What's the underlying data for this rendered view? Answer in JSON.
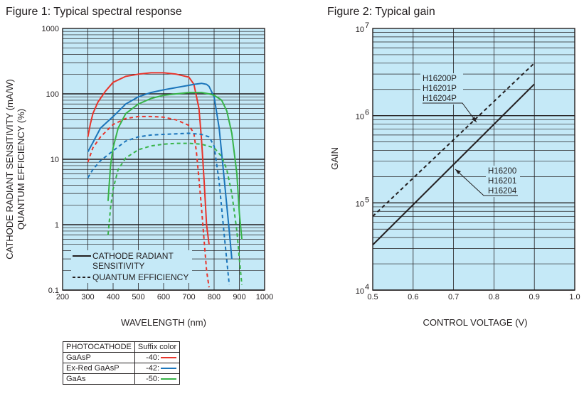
{
  "figure1": {
    "title": "Figure 1: Typical spectral response",
    "chart_data": {
      "type": "line",
      "xlabel": "WAVELENGTH (nm)",
      "ylabel_line1": "CATHODE RADIANT SENSITIVITY (mA/W)",
      "ylabel_line2": "QUANTUM EFFICIENCY (%)",
      "xlim": [
        200,
        1000
      ],
      "ylim": [
        0.1,
        1000
      ],
      "yscale": "log",
      "xticks": [
        200,
        300,
        400,
        500,
        600,
        700,
        800,
        900,
        1000
      ],
      "yticks": [
        0.1,
        1,
        10,
        100,
        1000
      ],
      "ytick_labels": [
        "0.1",
        "1",
        "10",
        "100",
        "1000"
      ],
      "grid": true,
      "legend": {
        "placement": "bottom-left",
        "solid_label_line1": "CATHODE RADIANT",
        "solid_label_line2": "SENSITIVITY",
        "dashed_label": "QUANTUM EFFICIENCY"
      },
      "series": [
        {
          "color": "#e8352c",
          "style": "solid",
          "x": [
            300,
            310,
            320,
            340,
            370,
            400,
            450,
            500,
            550,
            600,
            650,
            700,
            720,
            740,
            750,
            760,
            770,
            780
          ],
          "y": [
            22,
            35,
            50,
            75,
            110,
            150,
            185,
            200,
            210,
            210,
            200,
            180,
            140,
            60,
            20,
            5,
            1,
            0.5
          ]
        },
        {
          "color": "#e8352c",
          "style": "dashed",
          "x": [
            300,
            320,
            350,
            400,
            450,
            500,
            550,
            600,
            650,
            700,
            720,
            730,
            740,
            750,
            760,
            770,
            780
          ],
          "y": [
            9,
            15,
            22,
            34,
            42,
            45,
            45,
            44,
            40,
            33,
            25,
            13,
            5,
            1.8,
            0.6,
            0.2,
            0.11
          ]
        },
        {
          "color": "#1b75bb",
          "style": "solid",
          "x": [
            300,
            320,
            350,
            400,
            450,
            500,
            550,
            600,
            650,
            700,
            720,
            750,
            770,
            780,
            800,
            820,
            840,
            860,
            870
          ],
          "y": [
            13,
            18,
            30,
            45,
            70,
            90,
            105,
            115,
            125,
            135,
            140,
            145,
            140,
            130,
            90,
            30,
            5,
            0.8,
            0.3
          ]
        },
        {
          "color": "#1b75bb",
          "style": "dashed",
          "x": [
            300,
            320,
            350,
            400,
            450,
            500,
            550,
            600,
            650,
            700,
            750,
            780,
            800,
            820,
            840,
            860
          ],
          "y": [
            5.2,
            7,
            9.5,
            13.5,
            19,
            22,
            23.5,
            24,
            24.5,
            25,
            24,
            22,
            16,
            4.5,
            0.7,
            0.12
          ]
        },
        {
          "color": "#38b449",
          "style": "solid",
          "x": [
            380,
            390,
            400,
            420,
            450,
            500,
            550,
            600,
            650,
            700,
            750,
            780,
            800,
            830,
            850,
            870,
            890,
            900,
            910
          ],
          "y": [
            2.3,
            8,
            15,
            30,
            50,
            70,
            85,
            95,
            100,
            105,
            105,
            100,
            95,
            80,
            55,
            25,
            6,
            1.5,
            0.6
          ]
        },
        {
          "color": "#38b449",
          "style": "dashed",
          "x": [
            380,
            390,
            400,
            420,
            450,
            500,
            550,
            600,
            650,
            700,
            750,
            800,
            830,
            850,
            870,
            890,
            900,
            910
          ],
          "y": [
            0.7,
            1.8,
            3.5,
            7,
            10.5,
            14,
            16,
            17,
            17.5,
            17.5,
            17,
            15,
            11,
            7,
            3,
            0.8,
            0.3,
            0.12
          ]
        }
      ]
    }
  },
  "figure2": {
    "title": "Figure 2: Typical gain",
    "chart_data": {
      "type": "line",
      "xlabel": "CONTROL VOLTAGE (V)",
      "ylabel": "GAIN",
      "xlim": [
        0.5,
        1.0
      ],
      "ylim": [
        10000,
        10000000
      ],
      "yscale": "log",
      "xticks": [
        0.5,
        0.6,
        0.7,
        0.8,
        0.9,
        1.0
      ],
      "xtick_labels": [
        "0.5",
        "0.6",
        "0.7",
        "0.8",
        "0.9",
        "1.0"
      ],
      "ytick_base": [
        "10",
        "10",
        "10",
        "10"
      ],
      "ytick_exp": [
        "4",
        "5",
        "6",
        "7"
      ],
      "grid": true,
      "series": [
        {
          "color": "#231f20",
          "style": "dashed",
          "x": [
            0.5,
            0.9
          ],
          "y": [
            70000,
            4000000
          ]
        },
        {
          "color": "#231f20",
          "style": "solid",
          "x": [
            0.5,
            0.9
          ],
          "y": [
            33000,
            2300000
          ]
        }
      ],
      "annotations": {
        "dashed_labels": [
          "H16200P",
          "H16201P",
          "H16204P"
        ],
        "solid_labels": [
          "H16200",
          "H16201",
          "H16204"
        ]
      }
    }
  },
  "suffix_table": {
    "headers": [
      "PHOTOCATHODE",
      "Suffix color"
    ],
    "rows": [
      {
        "cathode": "GaAsP",
        "suffix": "-40:",
        "color": "#e8352c"
      },
      {
        "cathode": "Ex-Red GaAsP",
        "suffix": "-42:",
        "color": "#1b75bb"
      },
      {
        "cathode": "GaAs",
        "suffix": "-50:",
        "color": "#38b449"
      }
    ]
  },
  "colors": {
    "plot_background": "#c5e9f7",
    "grid": "#231f20",
    "text": "#231f20"
  }
}
